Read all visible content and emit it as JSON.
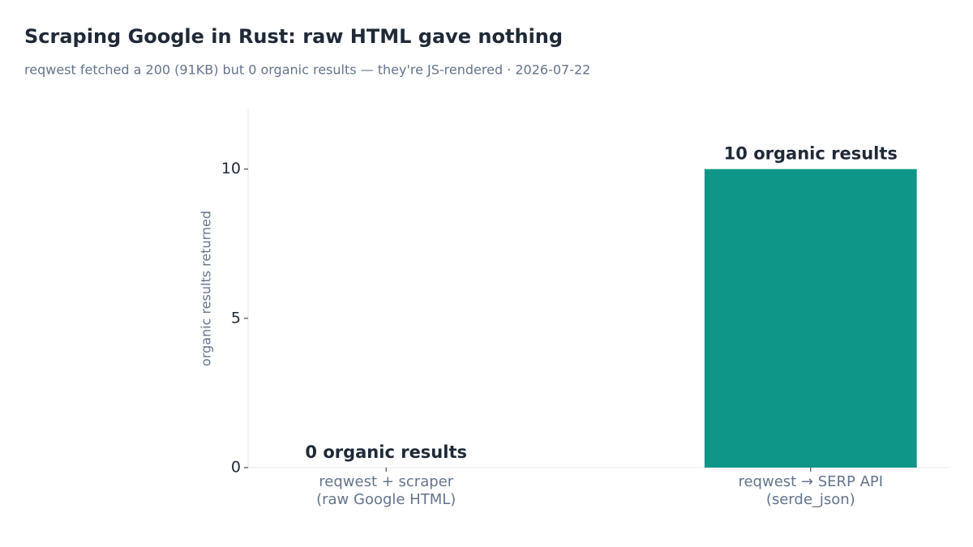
{
  "chart_data": {
    "type": "bar",
    "title": "Scraping Google in Rust: raw HTML gave nothing",
    "subtitle": "reqwest fetched a 200 (91KB) but 0 organic results — they're JS-rendered · 2026-07-22",
    "y_label": "organic results returned",
    "categories": [
      "reqwest + scraper\n(raw Google HTML)",
      "reqwest → SERP API\n(serde_json)"
    ],
    "values": [
      0,
      10
    ],
    "value_labels": [
      "0 organic results",
      "10 organic results"
    ],
    "color": "#0e9688",
    "ylim": [
      0,
      12
    ],
    "yticks": [
      0,
      5,
      10
    ],
    "grid": false
  }
}
